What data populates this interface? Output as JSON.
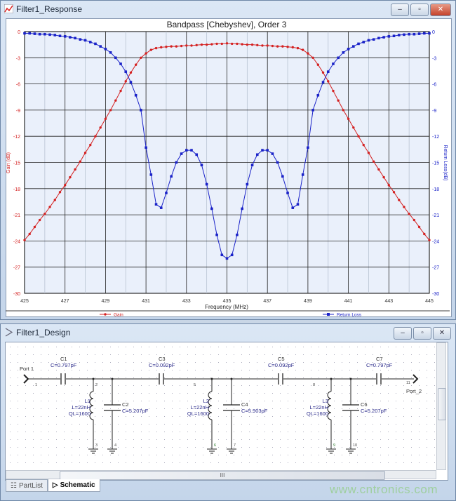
{
  "response_window": {
    "title": "Filter1_Response",
    "buttons": [
      "minimize",
      "restore",
      "close"
    ]
  },
  "design_window": {
    "title": "Filter1_Design",
    "buttons": [
      "minimize",
      "restore",
      "close"
    ]
  },
  "chart_data": {
    "type": "line",
    "title": "Bandpass [Chebyshev], Order 3",
    "xlabel": "Frequency (MHz)",
    "ylabel": "Gain (dB)",
    "y2label": "Return Loss(dB)",
    "xlim": [
      425,
      445
    ],
    "ylim": [
      -30,
      0
    ],
    "y2lim": [
      -30,
      0
    ],
    "xticks": [
      425,
      427,
      429,
      431,
      433,
      435,
      437,
      439,
      441,
      443,
      445
    ],
    "yticks": [
      0,
      -3,
      -6,
      -9,
      -12,
      -15,
      -18,
      -21,
      -24,
      -27,
      -30
    ],
    "grid": true,
    "legend": "bottom",
    "x_start": 425,
    "x_step": 0.25,
    "series": [
      {
        "name": "Gain",
        "color": "#d42020",
        "axis": "left",
        "values": [
          -23.9,
          -23.2,
          -22.4,
          -21.6,
          -20.9,
          -20.1,
          -19.3,
          -18.4,
          -17.6,
          -16.7,
          -15.8,
          -14.9,
          -13.9,
          -13.0,
          -12.0,
          -11.0,
          -10.0,
          -9.0,
          -7.9,
          -6.8,
          -5.7,
          -4.7,
          -3.8,
          -3.0,
          -2.5,
          -2.1,
          -1.9,
          -1.8,
          -1.75,
          -1.7,
          -1.7,
          -1.65,
          -1.6,
          -1.6,
          -1.55,
          -1.5,
          -1.5,
          -1.45,
          -1.4,
          -1.4,
          -1.35,
          -1.4,
          -1.4,
          -1.45,
          -1.5,
          -1.5,
          -1.55,
          -1.6,
          -1.6,
          -1.65,
          -1.7,
          -1.7,
          -1.75,
          -1.8,
          -1.9,
          -2.1,
          -2.5,
          -3.0,
          -3.8,
          -4.7,
          -5.7,
          -6.8,
          -7.9,
          -9.0,
          -10.0,
          -11.0,
          -12.0,
          -13.0,
          -13.9,
          -14.9,
          -15.8,
          -16.7,
          -17.6,
          -18.4,
          -19.3,
          -20.1,
          -20.9,
          -21.6,
          -22.4,
          -23.2,
          -23.9
        ]
      },
      {
        "name": "Return Loss",
        "color": "#1a22c8",
        "axis": "right",
        "values": [
          -0.2,
          -0.2,
          -0.25,
          -0.3,
          -0.3,
          -0.35,
          -0.4,
          -0.5,
          -0.55,
          -0.65,
          -0.75,
          -0.9,
          -1.0,
          -1.2,
          -1.4,
          -1.7,
          -2.0,
          -2.4,
          -3.0,
          -3.7,
          -4.6,
          -5.8,
          -7.3,
          -9.0,
          -13.3,
          -16.4,
          -19.8,
          -20.2,
          -18.5,
          -16.6,
          -15.0,
          -14.0,
          -13.6,
          -13.6,
          -14.1,
          -15.3,
          -17.5,
          -20.3,
          -23.3,
          -25.6,
          -26.0,
          -25.6,
          -23.3,
          -20.3,
          -17.5,
          -15.3,
          -14.1,
          -13.6,
          -13.6,
          -14.0,
          -15.0,
          -16.6,
          -18.5,
          -20.2,
          -19.8,
          -16.4,
          -13.3,
          -9.0,
          -7.3,
          -5.8,
          -4.6,
          -3.7,
          -3.0,
          -2.4,
          -2.0,
          -1.7,
          -1.4,
          -1.2,
          -1.0,
          -0.9,
          -0.75,
          -0.65,
          -0.55,
          -0.5,
          -0.4,
          -0.35,
          -0.3,
          -0.3,
          -0.25,
          -0.2,
          -0.2
        ]
      }
    ]
  },
  "schematic": {
    "port1": "Port 1",
    "port2": "Port_2",
    "C1": {
      "name": "C1",
      "value": "C=0.797pF"
    },
    "C2": {
      "name": "C2",
      "value": "C=5.207pF"
    },
    "C3": {
      "name": "C3",
      "value": "C=0.092pF"
    },
    "C4": {
      "name": "C4",
      "value": "C=5.903pF"
    },
    "C5": {
      "name": "C5",
      "value": "C=0.092pF"
    },
    "C6": {
      "name": "C6",
      "value": "C=5.207pF"
    },
    "C7": {
      "name": "C7",
      "value": "C=0.797pF"
    },
    "L1": {
      "name": "L1",
      "value": "L=22nH",
      "q": "QL=1600"
    },
    "L2": {
      "name": "L2",
      "value": "L=22nH",
      "q": "QL=1600"
    },
    "L3": {
      "name": "L3",
      "value": "L=22nH",
      "q": "QL=1600"
    },
    "nodes": [
      "1",
      "2",
      "3",
      "4",
      "5",
      "6",
      "7",
      "8",
      "9",
      "10",
      "11"
    ]
  },
  "tabs": [
    {
      "label": "PartList",
      "active": false
    },
    {
      "label": "Schematic",
      "active": true
    }
  ],
  "scrollbar": {
    "thumb_label": "III"
  },
  "watermark": "www.cntronics.com"
}
